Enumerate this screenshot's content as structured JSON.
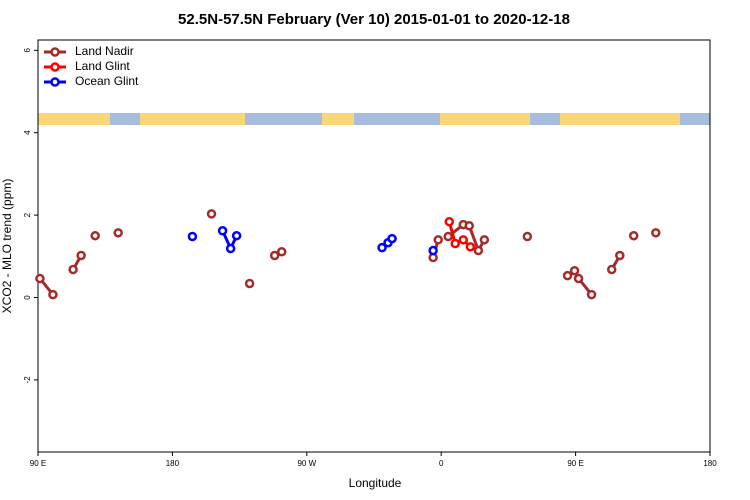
{
  "chart_data": {
    "type": "line",
    "title": "52.5N-57.5N February (Ver 10)   2015-01-01 to 2020-12-18",
    "x_label": "Longitude",
    "y_label": "XCO2 - MLO trend (ppm)",
    "xlim": [
      90,
      540
    ],
    "xticks": [
      {
        "value": 90,
        "label": "90 E"
      },
      180,
      {
        "value": 270,
        "label": "90 W"
      },
      {
        "value": 360,
        "label": "0"
      },
      {
        "value": 450,
        "label": "90 E"
      },
      {
        "value": 540,
        "label": "180"
      }
    ],
    "ylim": [
      -3.75,
      6.25
    ],
    "yticks": [
      -2,
      0,
      2,
      4,
      6
    ],
    "legend": "top-left",
    "series": [
      {
        "name": "Land Nadir",
        "color": "#a52a2a",
        "x": [
          91.3,
          100,
          null,
          113.5,
          118.9,
          null,
          128.3,
          null,
          143.7,
          null,
          206.2,
          null,
          231.7,
          null,
          248.5,
          253.2,
          null,
          354.6,
          358,
          null,
          364.7,
          374.8,
          378.8,
          384.9,
          388.9,
          null,
          417.7,
          null,
          444.6,
          449.3,
          452,
          460.7,
          null,
          474.2,
          479.6,
          null,
          488.9,
          null,
          503.7
        ],
        "values": [
          0.46,
          0.07,
          null,
          0.68,
          1.02,
          null,
          1.5,
          null,
          1.57,
          null,
          2.03,
          null,
          0.34,
          null,
          1.02,
          1.11,
          null,
          0.97,
          1.4,
          null,
          1.48,
          1.77,
          1.74,
          1.14,
          1.4,
          null,
          1.48,
          null,
          0.53,
          0.65,
          0.46,
          0.07,
          null,
          0.68,
          1.02,
          null,
          1.5,
          null,
          1.57
        ]
      },
      {
        "name": "Land Glint",
        "color": "#ff0000",
        "x": [
          365.4,
          369.4,
          374.8,
          379.5
        ],
        "values": [
          1.84,
          1.31,
          1.4,
          1.23
        ]
      },
      {
        "name": "Ocean Glint",
        "color": "#0000ff",
        "x": [
          193.4,
          null,
          213.6,
          219,
          223,
          null,
          320.4,
          324.4,
          327.1,
          null,
          354.6
        ],
        "values": [
          1.48,
          null,
          1.62,
          1.19,
          1.5,
          null,
          1.21,
          1.33,
          1.43,
          null,
          1.14
        ]
      }
    ]
  }
}
